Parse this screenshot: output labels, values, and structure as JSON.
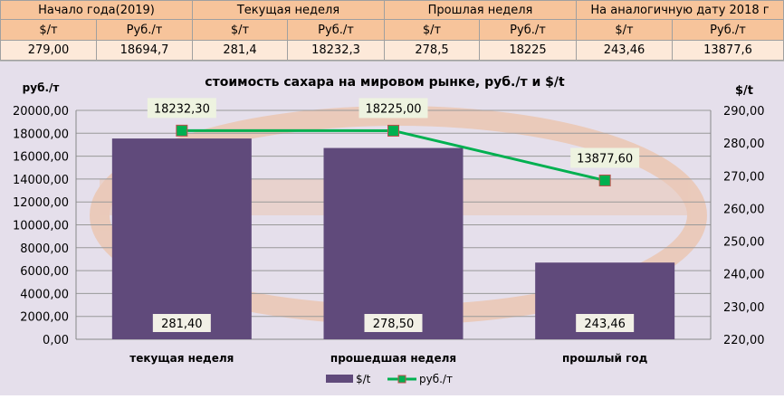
{
  "table": {
    "groups": [
      "Начало года(2019)",
      "Текущая неделя",
      "Прошлая неделя",
      "На аналогичную дату 2018 г"
    ],
    "units": [
      "$/т",
      "Руб./т",
      "$/т",
      "Руб./т",
      "$/т",
      "Руб./т",
      "$/т",
      "Руб./т"
    ],
    "values": [
      "279,00",
      "18694,7",
      "281,4",
      "18232,3",
      "278,5",
      "18225",
      "243,46",
      "13877,6"
    ]
  },
  "chart_data": {
    "type": "bar",
    "title": "стоимость сахара на мировом рынке, руб./т и $/t",
    "ylabel": "руб./т",
    "y2label": "$/t",
    "ylim": [
      0,
      20000
    ],
    "y2lim": [
      220,
      290
    ],
    "yticks": [
      "0,00",
      "2000,00",
      "4000,00",
      "6000,00",
      "8000,00",
      "10000,00",
      "12000,00",
      "14000,00",
      "16000,00",
      "18000,00",
      "20000,00"
    ],
    "y2ticks": [
      "220,00",
      "230,00",
      "240,00",
      "250,00",
      "260,00",
      "270,00",
      "280,00",
      "290,00"
    ],
    "categories": [
      "текущая неделя",
      "прошедшая неделя",
      "прошлый год"
    ],
    "series": [
      {
        "name": "$/t",
        "type": "bar",
        "axis": "right",
        "values": [
          281.4,
          278.5,
          243.46
        ],
        "labels": [
          "281,40",
          "278,50",
          "243,46"
        ],
        "color": "#604a7b"
      },
      {
        "name": "руб./т",
        "type": "line",
        "axis": "left",
        "values": [
          18232.3,
          18225,
          13877.6
        ],
        "labels": [
          "18232,30",
          "18225,00",
          "13877,60"
        ],
        "color": "#00b050"
      }
    ],
    "grid": true,
    "legend": "bottom"
  }
}
